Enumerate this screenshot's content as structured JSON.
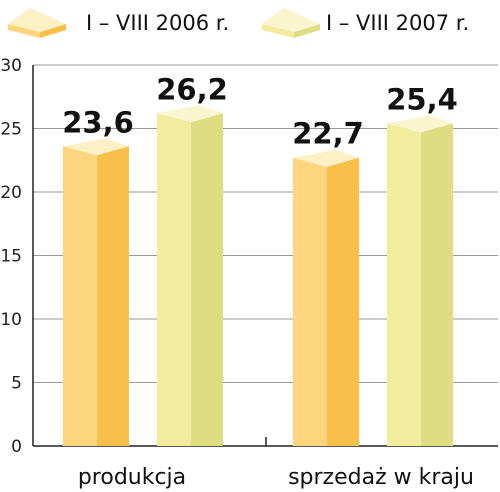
{
  "chart_data": {
    "type": "bar",
    "categories": [
      "produkcja",
      "sprzedaż w kraju"
    ],
    "series": [
      {
        "name": "I – VIII 2006 r.",
        "values": [
          23.6,
          22.7
        ],
        "value_labels": [
          "23,6",
          "22,7"
        ],
        "colors": {
          "front": "#fdd57e",
          "side": "#f8bf4a",
          "top": "#fef0c5"
        }
      },
      {
        "name": "I – VIII 2007 r.",
        "values": [
          26.2,
          25.4
        ],
        "value_labels": [
          "26,2",
          "25,4"
        ],
        "colors": {
          "front": "#f1ec9e",
          "side": "#dfdd82",
          "top": "#f8f5cf"
        }
      }
    ],
    "ylim": [
      0,
      30
    ],
    "yticks": [
      0,
      5,
      10,
      15,
      20,
      25,
      30
    ],
    "grid": true,
    "legend_position": "top-left",
    "title": "",
    "xlabel": "",
    "ylabel": ""
  }
}
